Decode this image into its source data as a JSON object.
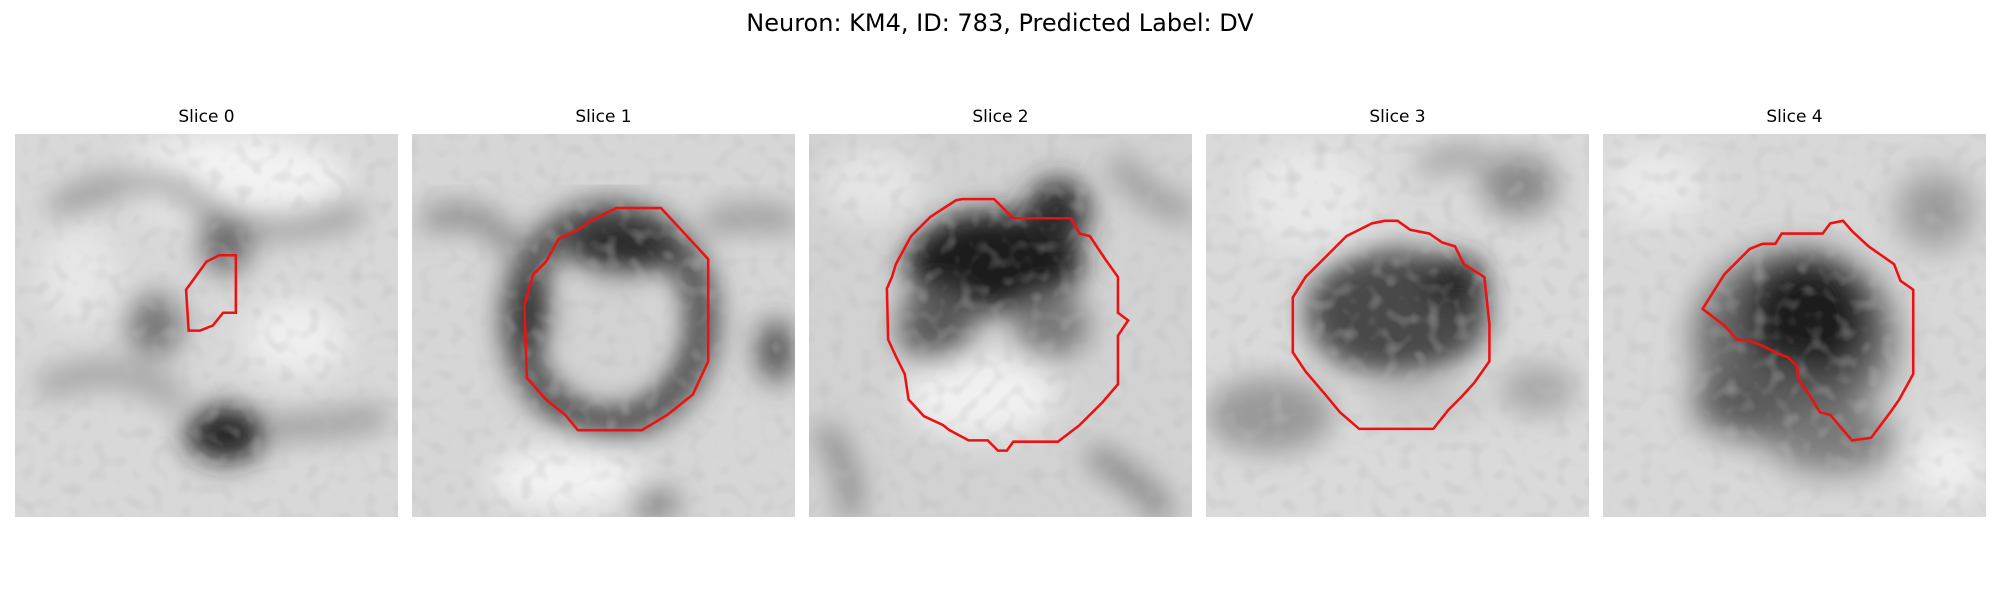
{
  "figure": {
    "title": "Neuron: KM4, ID: 783, Predicted Label: DV",
    "outline_color": "#ee1111"
  },
  "slices": [
    {
      "title": "Slice 0"
    },
    {
      "title": "Slice 1"
    },
    {
      "title": "Slice 2"
    },
    {
      "title": "Slice 3"
    },
    {
      "title": "Slice 4"
    }
  ]
}
